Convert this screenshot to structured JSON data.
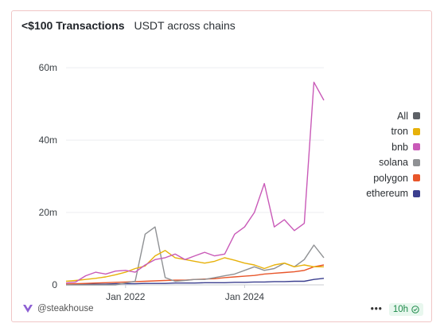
{
  "header": {
    "title": "<$100 Transactions",
    "subtitle": "USDT across chains"
  },
  "footer": {
    "author": "@steakhouse",
    "refresh": "10h",
    "more": "•••"
  },
  "colors": {
    "All": "#5d6166",
    "tron": "#e7b10a",
    "bnb": "#c95ab8",
    "solana": "#8f9194",
    "polygon": "#e8562a",
    "ethereum": "#3b3f8f"
  },
  "chart_data": {
    "type": "line",
    "title": "<$100 Transactions",
    "subtitle": "USDT across chains",
    "xlabel": "",
    "ylabel": "",
    "ylim": [
      0,
      62000000
    ],
    "yticks": [
      "0",
      "20m",
      "40m",
      "60m"
    ],
    "ytick_values": [
      0,
      20000000,
      40000000,
      60000000
    ],
    "xticks": [
      "Jan 2022",
      "Jan 2024"
    ],
    "xtick_dates": [
      "2022-01-01",
      "2024-01-01"
    ],
    "xlim": [
      "2021-01-01",
      "2025-05-01"
    ],
    "grid": "horizontal",
    "legend_position": "right",
    "x": [
      "2021-01",
      "2021-03",
      "2021-05",
      "2021-07",
      "2021-09",
      "2021-11",
      "2022-01",
      "2022-03",
      "2022-05",
      "2022-07",
      "2022-09",
      "2022-11",
      "2023-01",
      "2023-03",
      "2023-05",
      "2023-07",
      "2023-09",
      "2023-11",
      "2024-01",
      "2024-03",
      "2024-05",
      "2024-07",
      "2024-09",
      "2024-11",
      "2025-01",
      "2025-03",
      "2025-05"
    ],
    "series": [
      {
        "name": "All",
        "values": [
          null,
          null,
          null,
          null,
          null,
          null,
          null,
          null,
          null,
          null,
          null,
          null,
          null,
          null,
          null,
          null,
          null,
          null,
          null,
          null,
          null,
          null,
          null,
          null,
          null,
          null,
          null
        ]
      },
      {
        "name": "tron",
        "values": [
          1000000,
          1200000,
          1500000,
          1800000,
          2200000,
          2800000,
          3500000,
          4500000,
          5200000,
          8000000,
          9500000,
          7500000,
          7000000,
          6500000,
          6000000,
          6500000,
          7500000,
          6800000,
          6000000,
          5500000,
          4500000,
          5500000,
          6000000,
          5000000,
          5500000,
          5000000,
          5000000
        ]
      },
      {
        "name": "bnb",
        "values": [
          500000,
          800000,
          2500000,
          3500000,
          3000000,
          3800000,
          4000000,
          3500000,
          5500000,
          7000000,
          7500000,
          8500000,
          7000000,
          8000000,
          9000000,
          8000000,
          8500000,
          14000000,
          16000000,
          20000000,
          28000000,
          16000000,
          18000000,
          15000000,
          17000000,
          56000000,
          51000000
        ]
      },
      {
        "name": "solana",
        "values": [
          0,
          0,
          0,
          0,
          0,
          0,
          500000,
          1000000,
          14000000,
          16000000,
          2000000,
          1000000,
          1200000,
          1500000,
          1500000,
          2000000,
          2500000,
          3000000,
          4000000,
          5000000,
          4000000,
          4500000,
          6000000,
          5000000,
          7000000,
          11000000,
          7500000
        ]
      },
      {
        "name": "polygon",
        "values": [
          200000,
          300000,
          400000,
          500000,
          600000,
          700000,
          800000,
          900000,
          1000000,
          1100000,
          1200000,
          1300000,
          1300000,
          1500000,
          1600000,
          1700000,
          2000000,
          2200000,
          2400000,
          2600000,
          3000000,
          3200000,
          3400000,
          3600000,
          4000000,
          5000000,
          5500000
        ]
      },
      {
        "name": "ethereum",
        "values": [
          100000,
          100000,
          200000,
          200000,
          200000,
          300000,
          300000,
          300000,
          400000,
          400000,
          400000,
          500000,
          500000,
          500000,
          600000,
          600000,
          600000,
          700000,
          700000,
          800000,
          800000,
          900000,
          900000,
          1000000,
          1000000,
          1500000,
          1800000
        ]
      }
    ]
  }
}
